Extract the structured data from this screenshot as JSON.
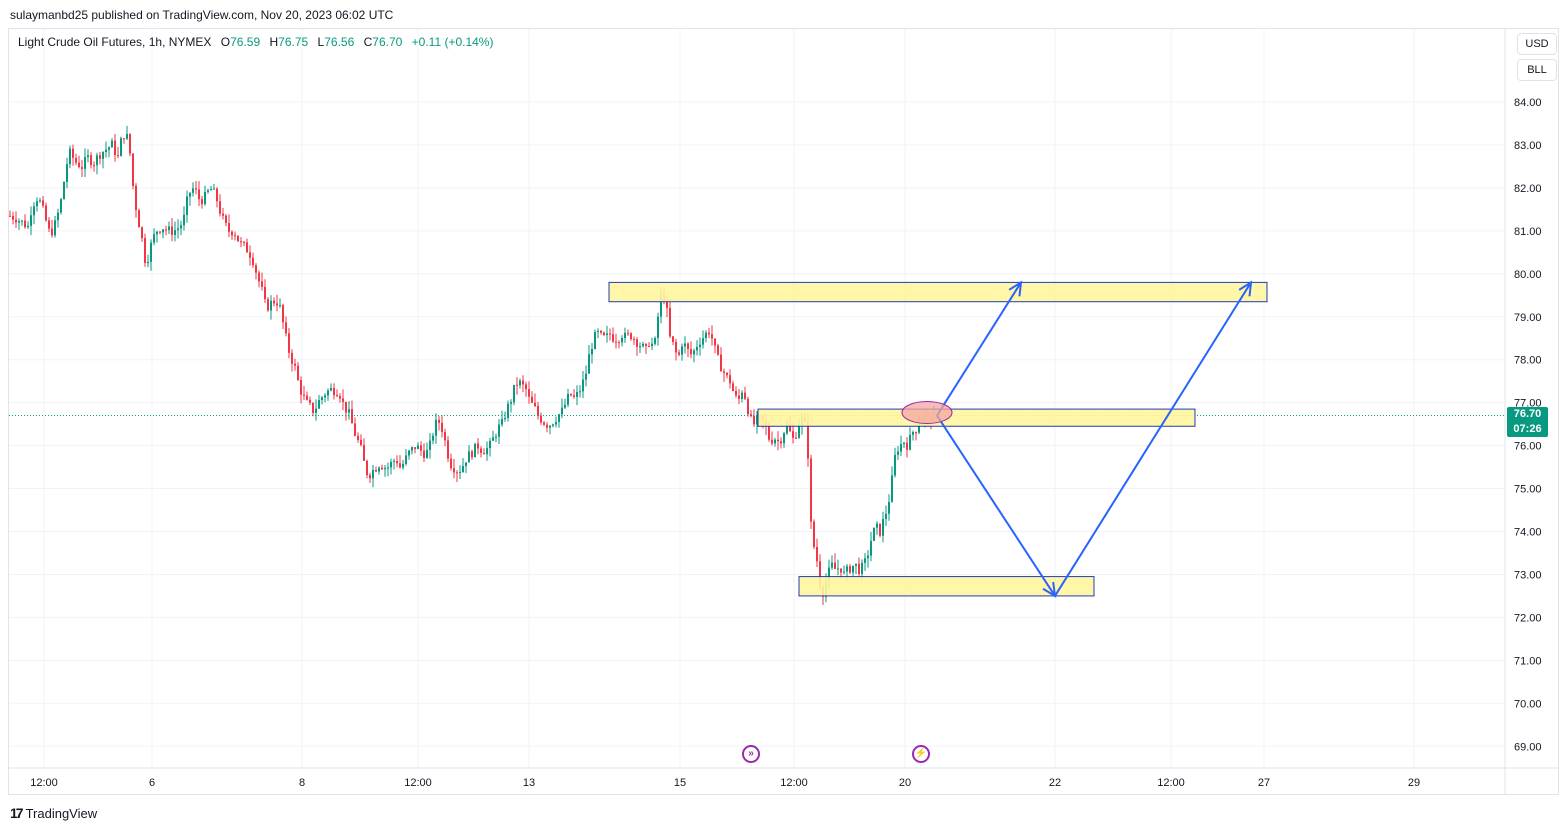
{
  "header": {
    "published": "sulaymanbd25 published on TradingView.com, Nov 20, 2023 06:02 UTC"
  },
  "legend": {
    "symbol": "Light Crude Oil Futures, 1h, NYMEX",
    "o_label": "O",
    "o_value": "76.59",
    "h_label": "H",
    "h_value": "76.75",
    "l_label": "L",
    "l_value": "76.56",
    "c_label": "C",
    "c_value": "76.70",
    "change": "+0.11 (+0.14%)"
  },
  "scale": {
    "currency": "USD",
    "unit": "BLL",
    "last_price": "76.70",
    "countdown": "07:26"
  },
  "footer": {
    "brand": "TradingView",
    "logo_glyph": "17"
  },
  "events": {
    "dividend_icon": "fast-forward-icon",
    "earnings_icon": "lightning-icon"
  },
  "colors": {
    "up": "#089981",
    "down": "#f23645",
    "zone_fill": "#fff59d",
    "zone_border": "#1e3cb4",
    "arrow": "#2962ff",
    "marker": "#9c27b0"
  },
  "chart_data": {
    "type": "candlestick",
    "title": "Light Crude Oil Futures, 1h, NYMEX",
    "y_ticks": [
      "84.00",
      "83.00",
      "82.00",
      "81.00",
      "80.00",
      "79.00",
      "78.00",
      "77.00",
      "76.00",
      "75.00",
      "74.00",
      "73.00",
      "72.00",
      "71.00",
      "70.00",
      "69.00"
    ],
    "ylim": [
      68.7,
      84.5
    ],
    "x_ticks": [
      "12:00",
      "6",
      "8",
      "12:00",
      "13",
      "15",
      "12:00",
      "20",
      "22",
      "12:00",
      "27",
      "29"
    ],
    "grid": true,
    "last_price": 76.7,
    "close_series": [
      [
        0,
        81.35
      ],
      [
        6,
        81.3
      ],
      [
        12,
        81.2
      ],
      [
        18,
        81.1
      ],
      [
        22,
        81.6
      ],
      [
        28,
        81.8
      ],
      [
        34,
        81.4
      ],
      [
        40,
        80.9
      ],
      [
        46,
        81.2
      ],
      [
        52,
        81.8
      ],
      [
        56,
        82.5
      ],
      [
        60,
        82.8
      ],
      [
        66,
        82.6
      ],
      [
        72,
        82.5
      ],
      [
        78,
        82.7
      ],
      [
        84,
        82.6
      ],
      [
        90,
        82.8
      ],
      [
        96,
        82.9
      ],
      [
        102,
        83.0
      ],
      [
        108,
        82.7
      ],
      [
        112,
        83.2
      ],
      [
        116,
        83.3
      ],
      [
        120,
        82.8
      ],
      [
        124,
        81.8
      ],
      [
        128,
        81.3
      ],
      [
        132,
        80.8
      ],
      [
        136,
        80.2
      ],
      [
        140,
        80.6
      ],
      [
        146,
        81.0
      ],
      [
        152,
        81.1
      ],
      [
        158,
        81.0
      ],
      [
        164,
        81.0
      ],
      [
        170,
        81.1
      ],
      [
        174,
        81.3
      ],
      [
        178,
        81.8
      ],
      [
        182,
        82.0
      ],
      [
        186,
        81.9
      ],
      [
        190,
        81.7
      ],
      [
        196,
        81.8
      ],
      [
        200,
        82.0
      ],
      [
        206,
        81.8
      ],
      [
        212,
        81.3
      ],
      [
        218,
        81.0
      ],
      [
        224,
        81.0
      ],
      [
        230,
        80.7
      ],
      [
        236,
        80.6
      ],
      [
        242,
        80.4
      ],
      [
        248,
        79.9
      ],
      [
        252,
        79.6
      ],
      [
        256,
        79.2
      ],
      [
        260,
        79.3
      ],
      [
        266,
        79.4
      ],
      [
        270,
        79.2
      ],
      [
        276,
        78.5
      ],
      [
        280,
        78.1
      ],
      [
        284,
        77.9
      ],
      [
        288,
        77.5
      ],
      [
        292,
        77.2
      ],
      [
        296,
        77.0
      ],
      [
        300,
        76.9
      ],
      [
        304,
        76.8
      ],
      [
        308,
        77.0
      ],
      [
        314,
        77.2
      ],
      [
        320,
        77.3
      ],
      [
        326,
        77.3
      ],
      [
        330,
        77.2
      ],
      [
        334,
        76.9
      ],
      [
        338,
        76.8
      ],
      [
        342,
        76.5
      ],
      [
        346,
        76.2
      ],
      [
        350,
        76.0
      ],
      [
        354,
        75.6
      ],
      [
        358,
        75.3
      ],
      [
        362,
        75.4
      ],
      [
        366,
        75.5
      ],
      [
        370,
        75.6
      ],
      [
        374,
        75.5
      ],
      [
        378,
        75.5
      ],
      [
        382,
        75.6
      ],
      [
        386,
        75.7
      ],
      [
        390,
        75.5
      ],
      [
        394,
        75.6
      ],
      [
        398,
        75.8
      ],
      [
        402,
        75.9
      ],
      [
        406,
        76.0
      ],
      [
        410,
        75.9
      ],
      [
        416,
        75.8
      ],
      [
        420,
        76.0
      ],
      [
        424,
        76.4
      ],
      [
        428,
        76.6
      ],
      [
        432,
        76.4
      ],
      [
        436,
        76.0
      ],
      [
        440,
        75.6
      ],
      [
        444,
        75.5
      ],
      [
        448,
        75.4
      ],
      [
        452,
        75.5
      ],
      [
        456,
        75.7
      ],
      [
        460,
        75.8
      ],
      [
        464,
        75.9
      ],
      [
        468,
        76.0
      ],
      [
        472,
        75.9
      ],
      [
        476,
        75.9
      ],
      [
        480,
        76.0
      ],
      [
        484,
        76.2
      ],
      [
        488,
        76.4
      ],
      [
        492,
        76.5
      ],
      [
        496,
        76.8
      ],
      [
        500,
        77.0
      ],
      [
        504,
        77.3
      ],
      [
        508,
        77.5
      ],
      [
        512,
        77.4
      ],
      [
        516,
        77.3
      ],
      [
        520,
        77.0
      ],
      [
        524,
        76.9
      ],
      [
        528,
        76.7
      ],
      [
        532,
        76.6
      ],
      [
        536,
        76.5
      ],
      [
        540,
        76.5
      ],
      [
        544,
        76.6
      ],
      [
        548,
        76.7
      ],
      [
        552,
        76.8
      ],
      [
        556,
        77.0
      ],
      [
        560,
        77.2
      ],
      [
        564,
        77.1
      ],
      [
        568,
        77.2
      ],
      [
        572,
        77.4
      ],
      [
        576,
        77.7
      ],
      [
        580,
        78.2
      ],
      [
        584,
        78.5
      ],
      [
        588,
        78.6
      ],
      [
        592,
        78.5
      ],
      [
        596,
        78.5
      ],
      [
        600,
        78.6
      ],
      [
        604,
        78.5
      ],
      [
        608,
        78.5
      ],
      [
        612,
        78.6
      ],
      [
        616,
        78.5
      ],
      [
        620,
        78.6
      ],
      [
        624,
        78.5
      ],
      [
        628,
        78.4
      ],
      [
        632,
        78.3
      ],
      [
        636,
        78.2
      ],
      [
        640,
        78.5
      ],
      [
        644,
        78.2
      ],
      [
        648,
        79.0
      ],
      [
        652,
        79.6
      ],
      [
        656,
        79.3
      ],
      [
        660,
        78.5
      ],
      [
        664,
        78.3
      ],
      [
        668,
        78.0
      ],
      [
        672,
        78.4
      ],
      [
        676,
        78.3
      ],
      [
        680,
        78.1
      ],
      [
        684,
        78.2
      ],
      [
        688,
        78.4
      ],
      [
        692,
        78.5
      ],
      [
        696,
        78.6
      ],
      [
        700,
        78.7
      ],
      [
        704,
        78.3
      ],
      [
        708,
        78.0
      ],
      [
        712,
        77.8
      ],
      [
        716,
        77.6
      ],
      [
        720,
        77.5
      ],
      [
        724,
        77.2
      ],
      [
        728,
        77.0
      ],
      [
        732,
        77.3
      ],
      [
        736,
        77.1
      ],
      [
        740,
        76.6
      ],
      [
        744,
        76.5
      ],
      [
        748,
        76.6
      ],
      [
        752,
        76.6
      ],
      [
        756,
        76.4
      ],
      [
        760,
        76.1
      ],
      [
        764,
        76.2
      ],
      [
        768,
        76.1
      ],
      [
        772,
        76.2
      ],
      [
        776,
        76.5
      ],
      [
        780,
        76.3
      ],
      [
        784,
        76.1
      ],
      [
        788,
        76.5
      ],
      [
        792,
        76.6
      ],
      [
        796,
        76.4
      ],
      [
        798,
        75.8
      ],
      [
        800,
        74.5
      ],
      [
        802,
        73.8
      ],
      [
        806,
        73.5
      ],
      [
        810,
        72.8
      ],
      [
        812,
        72.5
      ],
      [
        814,
        72.7
      ],
      [
        818,
        73.0
      ],
      [
        822,
        73.2
      ],
      [
        826,
        73.1
      ],
      [
        830,
        73.2
      ],
      [
        834,
        73.0
      ],
      [
        838,
        73.1
      ],
      [
        842,
        73.2
      ],
      [
        846,
        73.2
      ],
      [
        850,
        73.1
      ],
      [
        854,
        73.2
      ],
      [
        858,
        73.5
      ],
      [
        862,
        73.9
      ],
      [
        866,
        74.1
      ],
      [
        870,
        74.0
      ],
      [
        874,
        74.3
      ],
      [
        878,
        74.6
      ],
      [
        882,
        75.2
      ],
      [
        886,
        75.9
      ],
      [
        890,
        76.0
      ],
      [
        894,
        76.1
      ],
      [
        898,
        76.0
      ],
      [
        902,
        76.3
      ],
      [
        906,
        76.4
      ],
      [
        910,
        76.6
      ],
      [
        914,
        76.7
      ],
      [
        918,
        76.6
      ],
      [
        922,
        76.7
      ],
      [
        926,
        76.7
      ]
    ]
  },
  "drawings": {
    "zones": [
      {
        "name": "upper-resistance-zone",
        "t0": 600,
        "t1": 1258,
        "p_top": 79.8,
        "p_bot": 79.35
      },
      {
        "name": "middle-zone",
        "t0": 749,
        "t1": 1186,
        "p_top": 76.85,
        "p_bot": 76.45
      },
      {
        "name": "lower-support-zone",
        "t0": 790,
        "t1": 1085,
        "p_top": 72.95,
        "p_bot": 72.5
      }
    ],
    "arrows": [
      {
        "name": "arrow-up-to-resistance",
        "from": [
          928,
          76.7
        ],
        "to": [
          1012,
          79.8
        ]
      },
      {
        "name": "arrow-down-to-support",
        "from": [
          928,
          76.7
        ],
        "to": [
          1046,
          72.5
        ]
      },
      {
        "name": "arrow-up-from-support",
        "from": [
          1046,
          72.5
        ],
        "to": [
          1242,
          79.8
        ]
      }
    ],
    "highlight": {
      "t": 928,
      "p": 76.7
    }
  }
}
